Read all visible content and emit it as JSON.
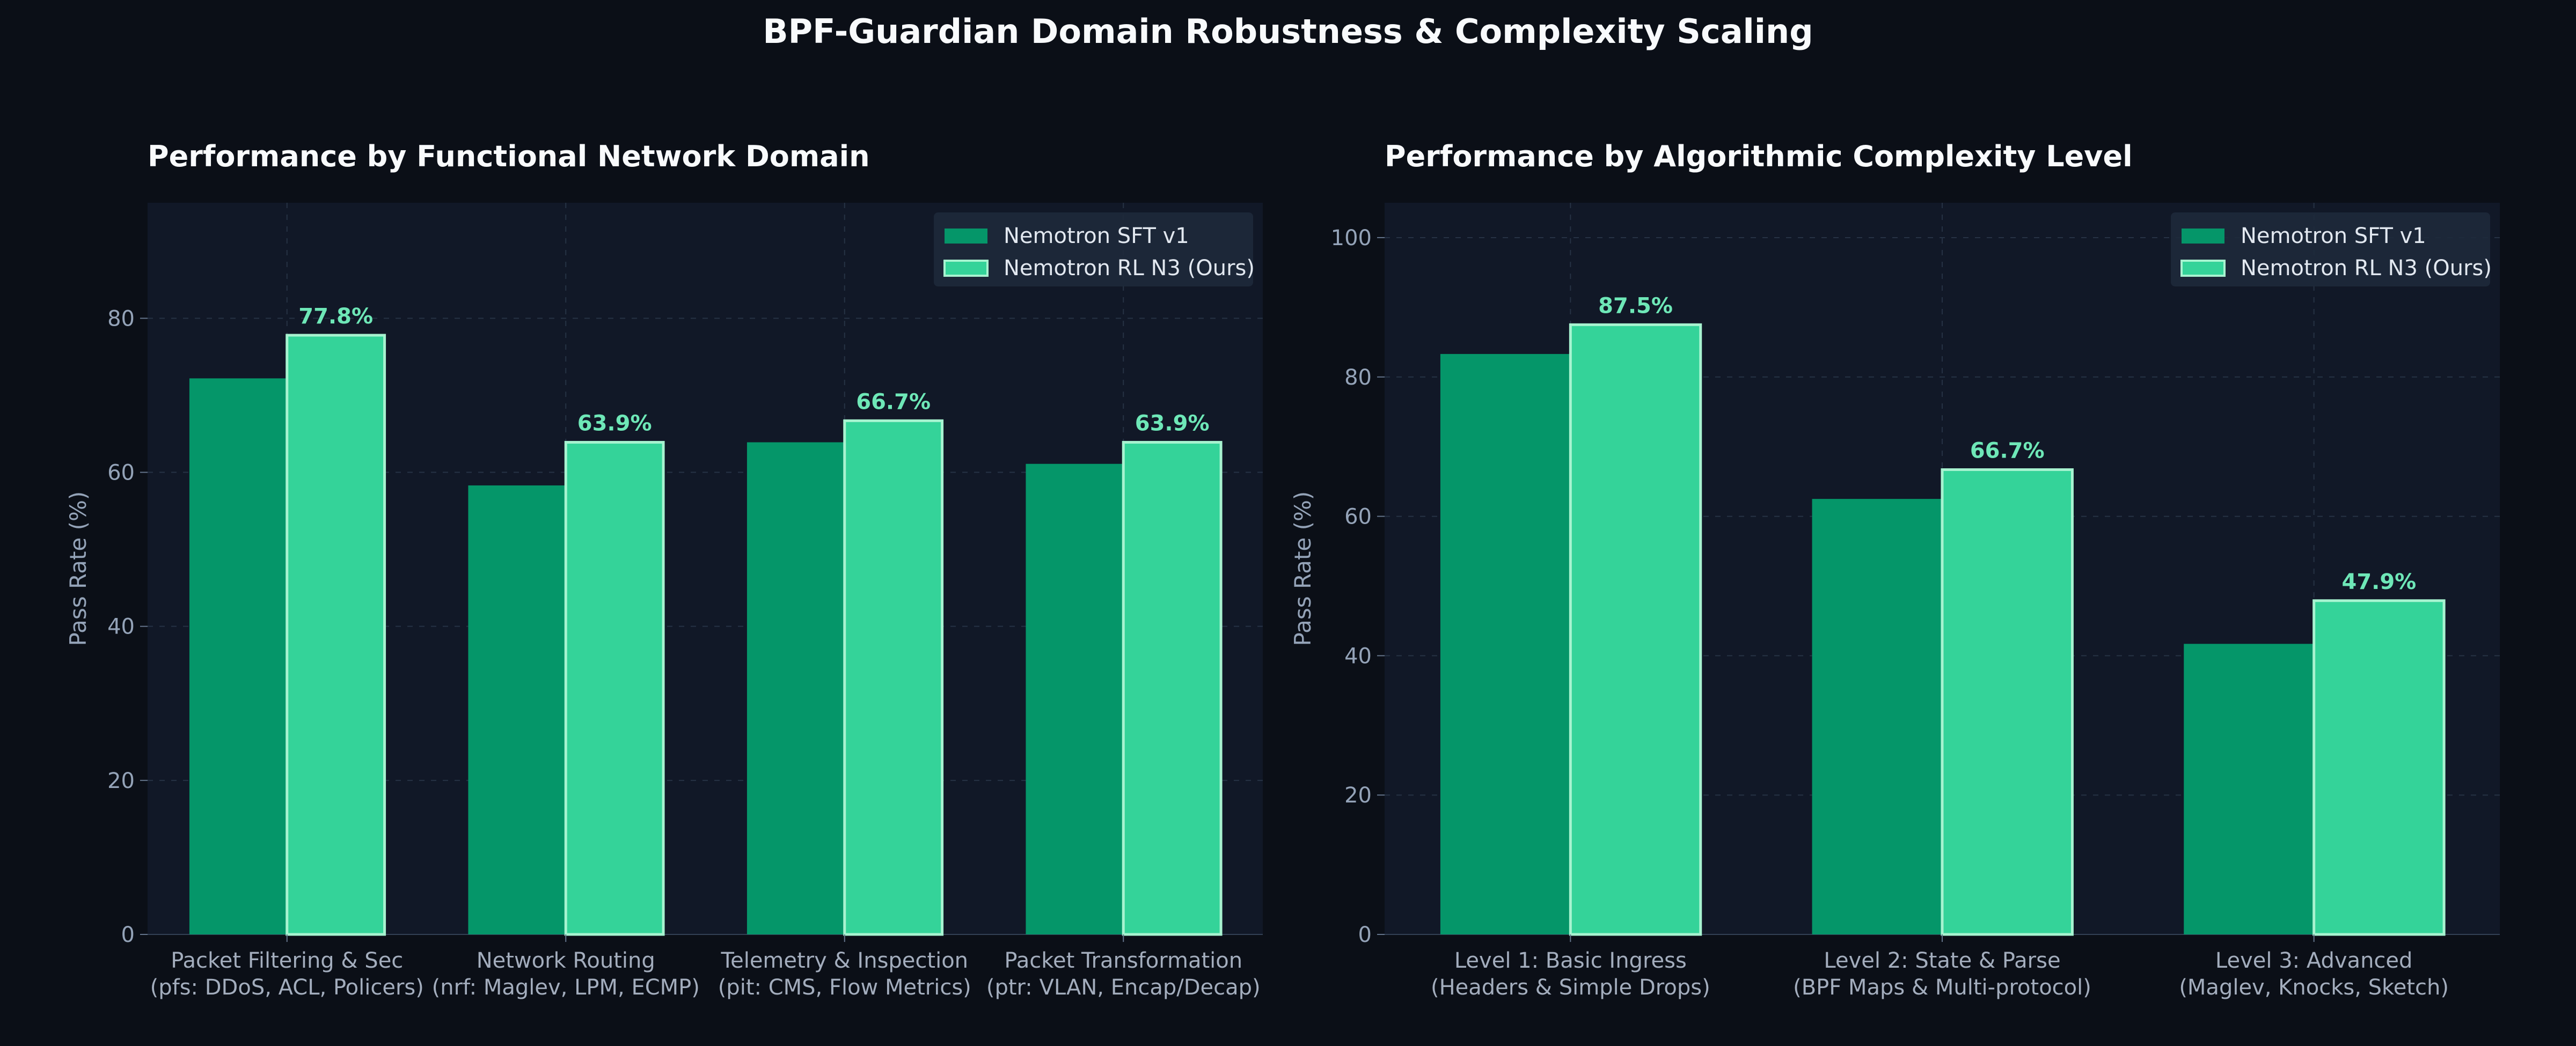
{
  "figure_title": "BPF-Guardian Domain Robustness & Complexity Scaling",
  "colors": {
    "background": "#0b0f17",
    "panel": "#111827",
    "sft": "#059669",
    "rl": "#34d399",
    "rl_edge": "#a7f3d0",
    "value_label": "#6ee7b7"
  },
  "chart_data": [
    {
      "type": "bar",
      "title": "Performance by Functional Network Domain",
      "ylabel": "Pass Rate (%)",
      "ylim": [
        0,
        95
      ],
      "yticks": [
        0,
        20,
        40,
        60,
        80
      ],
      "grid": true,
      "legend_position": "top-right",
      "categories": [
        [
          "Packet Filtering & Sec",
          "(pfs: DDoS, ACL, Policers)"
        ],
        [
          "Network Routing",
          "(nrf: Maglev, LPM, ECMP)"
        ],
        [
          "Telemetry & Inspection",
          "(pit: CMS, Flow Metrics)"
        ],
        [
          "Packet Transformation",
          "(ptr: VLAN, Encap/Decap)"
        ]
      ],
      "series": [
        {
          "name": "Nemotron SFT v1",
          "values": [
            72.2,
            58.3,
            63.9,
            61.1
          ]
        },
        {
          "name": "Nemotron RL N3 (Ours)",
          "values": [
            77.8,
            63.9,
            66.7,
            63.9
          ],
          "labels": [
            "77.8%",
            "63.9%",
            "66.7%",
            "63.9%"
          ]
        }
      ]
    },
    {
      "type": "bar",
      "title": "Performance by Algorithmic Complexity Level",
      "ylabel": "Pass Rate (%)",
      "ylim": [
        0,
        105
      ],
      "yticks": [
        0,
        20,
        40,
        60,
        80,
        100
      ],
      "grid": true,
      "legend_position": "top-right",
      "categories": [
        [
          "Level 1: Basic Ingress",
          "(Headers & Simple Drops)"
        ],
        [
          "Level 2: State & Parse",
          "(BPF Maps & Multi-protocol)"
        ],
        [
          "Level 3: Advanced",
          "(Maglev, Knocks, Sketch)"
        ]
      ],
      "series": [
        {
          "name": "Nemotron SFT v1",
          "values": [
            83.3,
            62.5,
            41.7
          ]
        },
        {
          "name": "Nemotron RL N3 (Ours)",
          "values": [
            87.5,
            66.7,
            47.9
          ],
          "labels": [
            "87.5%",
            "66.7%",
            "47.9%"
          ]
        }
      ]
    }
  ]
}
